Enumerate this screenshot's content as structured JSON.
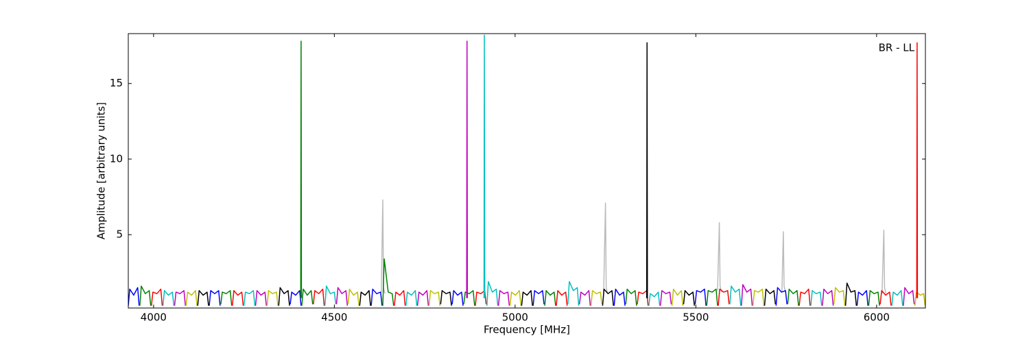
{
  "chart_data": {
    "type": "line",
    "xlabel": "Frequency [MHz]",
    "ylabel": "Amplitude [arbitrary units]",
    "annotation": "BR - LL",
    "xlim": [
      3930,
      6135
    ],
    "ylim": [
      0.15,
      18.3
    ],
    "xticks": [
      4000,
      4500,
      5000,
      5500,
      6000
    ],
    "yticks": [
      5,
      10,
      15
    ],
    "grid": false,
    "series": [
      {
        "color": "#bbbbbb",
        "x": [
          4630,
          4634,
          4636,
          4640,
          null,
          5245,
          5250,
          5252,
          5256,
          null,
          5560,
          5565,
          5567,
          5571,
          null,
          5738,
          5742,
          5744,
          5748,
          null,
          6015,
          6020,
          6022,
          6026
        ],
        "values": [
          1.2,
          7.3,
          1.5,
          1.1,
          null,
          1.2,
          7.1,
          1.5,
          1.1,
          null,
          1.3,
          5.8,
          1.6,
          1.2,
          null,
          1.2,
          5.2,
          1.6,
          1.2,
          null,
          1.1,
          5.3,
          1.5,
          1.1
        ]
      },
      {
        "color": "#0000ff",
        "x": [
          3930,
          3934,
          3945,
          3956,
          3960,
          null,
          4154,
          4158,
          4169,
          4180,
          4184,
          null,
          4378,
          4382,
          4393,
          4404,
          4408,
          null,
          4602,
          4606,
          4617,
          4628,
          4632,
          null,
          4826,
          4830,
          4841,
          4852,
          4856,
          null,
          5050,
          5054,
          5065,
          5076,
          5080,
          null,
          5274,
          5278,
          5289,
          5300,
          5304,
          null,
          5498,
          5502,
          5513,
          5524,
          5528,
          null,
          5722,
          5726,
          5737,
          5748,
          5752,
          null,
          5946,
          5950,
          5961,
          5972,
          5976
        ],
        "values": [
          0.3,
          1.4,
          1.0,
          1.5,
          0.3,
          null,
          0.3,
          1.3,
          1.1,
          1.3,
          0.3,
          null,
          0.4,
          1.2,
          1.0,
          1.3,
          0.3,
          null,
          0.3,
          1.4,
          1.1,
          1.2,
          0.3,
          null,
          0.4,
          1.3,
          1.0,
          1.2,
          0.3,
          null,
          0.3,
          1.3,
          1.1,
          1.3,
          0.4,
          null,
          0.3,
          1.4,
          1.0,
          1.2,
          0.3,
          null,
          0.4,
          1.3,
          1.2,
          1.4,
          0.3,
          null,
          0.3,
          1.5,
          1.2,
          1.3,
          0.4,
          null,
          0.3,
          1.2,
          1.0,
          1.3,
          0.3
        ]
      },
      {
        "color": "#008000",
        "x": [
          3962,
          3966,
          3977,
          3988,
          3992,
          null,
          4186,
          4190,
          4201,
          4212,
          4216,
          null,
          4410,
          4414,
          4425,
          4436,
          4440,
          null,
          4634,
          4638,
          4649,
          4660,
          4664,
          null,
          4858,
          4862,
          4873,
          4884,
          4888,
          null,
          5082,
          5086,
          5097,
          5108,
          5112,
          null,
          5306,
          5310,
          5321,
          5332,
          5336,
          null,
          5530,
          5534,
          5545,
          5556,
          5560,
          null,
          5754,
          5758,
          5769,
          5780,
          5784,
          null,
          5978,
          5982,
          5993,
          6004,
          6008
        ],
        "values": [
          0.3,
          1.6,
          1.1,
          1.3,
          0.3,
          null,
          0.4,
          1.2,
          1.1,
          1.3,
          0.3,
          null,
          0.3,
          1.4,
          1.0,
          1.3,
          0.4,
          null,
          0.3,
          3.4,
          1.2,
          1.1,
          0.3,
          null,
          0.4,
          1.2,
          1.1,
          1.3,
          0.3,
          null,
          0.3,
          1.3,
          1.0,
          1.2,
          0.3,
          null,
          0.4,
          1.4,
          1.1,
          1.3,
          0.3,
          null,
          0.3,
          1.3,
          1.2,
          1.4,
          0.3,
          null,
          0.4,
          1.4,
          1.1,
          1.3,
          0.3,
          null,
          0.3,
          1.3,
          1.1,
          1.2,
          0.3
        ]
      },
      {
        "color": "#ff0000",
        "x": [
          3994,
          3998,
          4009,
          4020,
          4024,
          null,
          4218,
          4222,
          4233,
          4244,
          4248,
          null,
          4442,
          4446,
          4457,
          4468,
          4472,
          null,
          4666,
          4670,
          4681,
          4692,
          4696,
          null,
          4890,
          4894,
          4905,
          4916,
          4920,
          null,
          5114,
          5118,
          5129,
          5140,
          5144,
          null,
          5338,
          5342,
          5353,
          5364,
          5368,
          null,
          5562,
          5566,
          5577,
          5588,
          5592,
          null,
          5786,
          5790,
          5801,
          5812,
          5816,
          null,
          6010,
          6014,
          6025,
          6036,
          6040
        ],
        "values": [
          0.3,
          1.2,
          1.1,
          1.4,
          0.3,
          null,
          0.3,
          1.3,
          1.0,
          1.2,
          0.3,
          null,
          0.4,
          1.3,
          1.1,
          1.4,
          0.3,
          null,
          0.3,
          1.2,
          1.0,
          1.3,
          0.3,
          null,
          0.3,
          1.2,
          1.1,
          1.3,
          0.4,
          null,
          0.3,
          1.3,
          1.0,
          1.2,
          0.3,
          null,
          0.4,
          1.2,
          1.1,
          1.3,
          0.3,
          null,
          0.3,
          1.4,
          1.2,
          1.3,
          0.4,
          null,
          0.3,
          1.2,
          1.1,
          1.4,
          0.3,
          null,
          0.4,
          1.3,
          1.0,
          1.2,
          0.3
        ]
      },
      {
        "color": "#00bfbf",
        "x": [
          4026,
          4030,
          4041,
          4052,
          4056,
          null,
          4250,
          4254,
          4265,
          4276,
          4280,
          null,
          4474,
          4478,
          4489,
          4500,
          4504,
          null,
          4698,
          4702,
          4713,
          4724,
          4728,
          null,
          4922,
          4926,
          4937,
          4948,
          4952,
          null,
          5146,
          5150,
          5161,
          5172,
          5176,
          null,
          5370,
          5374,
          5385,
          5396,
          5400,
          null,
          5594,
          5598,
          5609,
          5620,
          5624,
          null,
          5818,
          5822,
          5833,
          5844,
          5848,
          null,
          6042,
          6046,
          6057,
          6068,
          6072
        ],
        "values": [
          0.3,
          1.3,
          1.0,
          1.2,
          0.3,
          null,
          0.3,
          1.2,
          1.1,
          1.3,
          0.3,
          null,
          0.3,
          1.6,
          1.1,
          1.2,
          0.4,
          null,
          0.3,
          1.2,
          1.0,
          1.3,
          0.3,
          null,
          0.3,
          1.9,
          1.2,
          1.4,
          0.3,
          null,
          0.4,
          1.9,
          1.3,
          1.5,
          0.3,
          null,
          0.3,
          1.1,
          0.9,
          1.2,
          0.3,
          null,
          0.4,
          1.6,
          1.2,
          1.4,
          0.3,
          null,
          0.3,
          1.3,
          1.1,
          1.2,
          0.3,
          null,
          0.3,
          1.2,
          1.0,
          1.3,
          0.3
        ]
      },
      {
        "color": "#bf00bf",
        "x": [
          4058,
          4062,
          4073,
          4084,
          4088,
          null,
          4282,
          4286,
          4297,
          4308,
          4312,
          null,
          4506,
          4510,
          4521,
          4532,
          4536,
          null,
          4730,
          4734,
          4745,
          4756,
          4760,
          null,
          4954,
          4958,
          4969,
          4980,
          4984,
          null,
          5178,
          5182,
          5193,
          5204,
          5208,
          null,
          5402,
          5406,
          5417,
          5428,
          5432,
          null,
          5626,
          5630,
          5641,
          5652,
          5656,
          null,
          5850,
          5854,
          5865,
          5876,
          5880,
          null,
          6074,
          6078,
          6089,
          6100,
          6104
        ],
        "values": [
          0.3,
          1.2,
          1.1,
          1.3,
          0.3,
          null,
          0.3,
          1.3,
          1.0,
          1.2,
          0.3,
          null,
          0.4,
          1.5,
          1.1,
          1.3,
          0.3,
          null,
          0.3,
          1.2,
          1.0,
          1.3,
          0.3,
          null,
          0.3,
          1.3,
          1.1,
          1.2,
          0.3,
          null,
          0.4,
          1.2,
          1.0,
          1.3,
          0.3,
          null,
          0.3,
          1.3,
          1.1,
          1.2,
          0.4,
          null,
          0.3,
          1.7,
          1.2,
          1.4,
          0.3,
          null,
          0.3,
          1.4,
          1.1,
          1.3,
          0.3,
          null,
          0.3,
          1.5,
          1.1,
          1.3,
          0.4
        ]
      },
      {
        "color": "#bfbf00",
        "x": [
          4090,
          4094,
          4105,
          4116,
          4120,
          null,
          4314,
          4318,
          4329,
          4340,
          4344,
          null,
          4538,
          4542,
          4553,
          4564,
          4568,
          null,
          4762,
          4766,
          4777,
          4788,
          4792,
          null,
          4986,
          4990,
          5001,
          5012,
          5016,
          null,
          5210,
          5214,
          5225,
          5236,
          5240,
          null,
          5434,
          5438,
          5449,
          5460,
          5464,
          null,
          5658,
          5662,
          5673,
          5684,
          5688,
          null,
          5882,
          5886,
          5897,
          5908,
          5912,
          null,
          6106,
          6110,
          6121,
          6130,
          6134
        ],
        "values": [
          0.3,
          1.2,
          1.0,
          1.3,
          0.3,
          null,
          0.3,
          1.3,
          1.1,
          1.2,
          0.3,
          null,
          0.4,
          1.4,
          1.0,
          1.2,
          0.3,
          null,
          0.3,
          1.3,
          1.1,
          1.2,
          0.3,
          null,
          0.3,
          1.2,
          1.0,
          1.3,
          0.3,
          null,
          0.3,
          1.3,
          1.1,
          1.2,
          0.4,
          null,
          0.3,
          1.4,
          1.0,
          1.3,
          0.3,
          null,
          0.3,
          1.3,
          1.2,
          1.4,
          0.3,
          null,
          0.4,
          1.5,
          1.2,
          1.3,
          0.3,
          null,
          0.3,
          1.2,
          1.0,
          1.1,
          0.3
        ]
      },
      {
        "color": "#000000",
        "x": [
          4122,
          4126,
          4137,
          4148,
          4152,
          null,
          4346,
          4350,
          4361,
          4372,
          4376,
          null,
          4570,
          4574,
          4585,
          4596,
          4600,
          null,
          4794,
          4798,
          4809,
          4820,
          4824,
          null,
          5018,
          5022,
          5033,
          5044,
          5048,
          null,
          5242,
          5246,
          5257,
          5268,
          5272,
          null,
          5466,
          5470,
          5481,
          5492,
          5496,
          null,
          5690,
          5694,
          5705,
          5716,
          5720,
          null,
          5914,
          5918,
          5929,
          5940,
          5944
        ],
        "values": [
          0.3,
          1.3,
          1.0,
          1.2,
          0.3,
          null,
          0.3,
          1.5,
          1.1,
          1.3,
          0.3,
          null,
          0.3,
          1.2,
          1.0,
          1.3,
          0.3,
          null,
          0.4,
          1.3,
          1.1,
          1.2,
          0.3,
          null,
          0.3,
          1.2,
          1.0,
          1.3,
          0.3,
          null,
          0.3,
          1.4,
          1.1,
          1.3,
          0.3,
          null,
          0.4,
          1.3,
          1.0,
          1.2,
          0.3,
          null,
          0.3,
          1.4,
          1.1,
          1.3,
          0.4,
          null,
          0.3,
          1.8,
          1.2,
          1.3,
          0.3
        ]
      },
      {
        "color": "#008000",
        "x": [
          4407,
          4408,
          4409
        ],
        "values": [
          0.8,
          17.8,
          0.8
        ]
      },
      {
        "color": "#bf00bf",
        "x": [
          4866,
          4867,
          4868
        ],
        "values": [
          0.8,
          17.8,
          0.8
        ]
      },
      {
        "color": "#00bfbf",
        "x": [
          4914,
          4915,
          4916
        ],
        "values": [
          0.8,
          18.2,
          0.8
        ]
      },
      {
        "color": "#000000",
        "x": [
          5364,
          5365,
          5366
        ],
        "values": [
          0.8,
          17.7,
          0.8
        ]
      },
      {
        "color": "#ff0000",
        "x": [
          6111,
          6112,
          6113
        ],
        "values": [
          0.8,
          17.7,
          0.8
        ]
      }
    ]
  }
}
